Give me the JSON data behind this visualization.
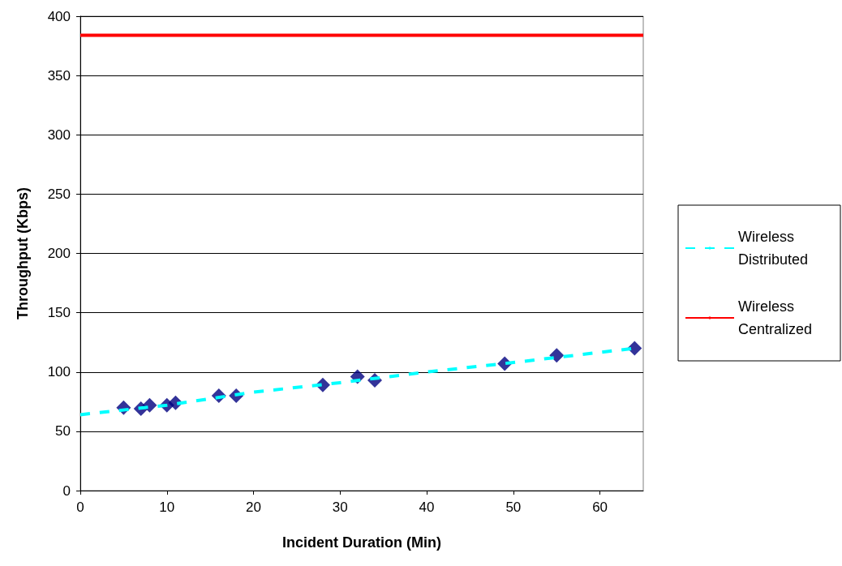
{
  "chart_data": {
    "type": "scatter",
    "xlabel": "Incident Duration (Min)",
    "ylabel": "Throughput (Kbps)",
    "xlim": [
      0,
      65
    ],
    "xticks": [
      0,
      10,
      20,
      30,
      40,
      50,
      60
    ],
    "ylim": [
      0,
      400
    ],
    "yticks": [
      0,
      50,
      100,
      150,
      200,
      250,
      300,
      350,
      400
    ],
    "grid": "y",
    "legend": "right",
    "series": [
      {
        "type": "line",
        "name": "Wireless Distributed",
        "color": "#00ffff",
        "line_style": "dashed",
        "marker": "none",
        "x": [
          0,
          10,
          20,
          30,
          40,
          50,
          64
        ],
        "values": [
          64,
          72,
          83,
          91,
          100,
          108,
          120
        ]
      },
      {
        "type": "line",
        "name": "Wireless Centralized",
        "color": "#ff0000",
        "line_style": "solid",
        "marker": "none",
        "x": [
          0,
          65
        ],
        "values": [
          384,
          384
        ]
      },
      {
        "color": "#000080",
        "marker": "diamond",
        "x": [
          5,
          7,
          8,
          10,
          11,
          16,
          18,
          28,
          32,
          34,
          49,
          55,
          64
        ],
        "values": [
          70,
          69,
          72,
          72,
          74,
          80,
          80,
          89,
          96,
          93,
          107,
          114,
          120
        ]
      }
    ]
  }
}
